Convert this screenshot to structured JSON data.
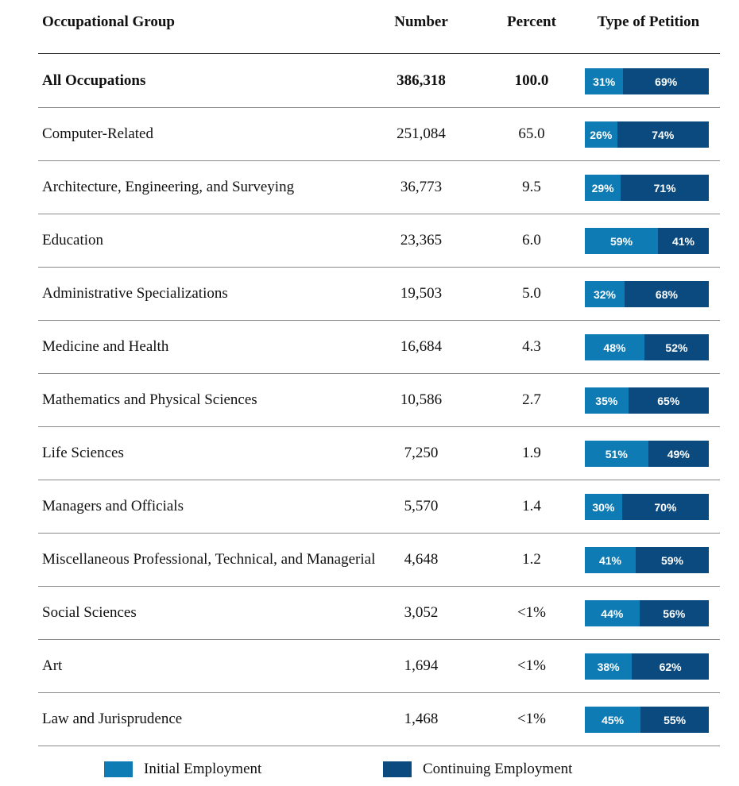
{
  "headers": {
    "group": "Occupational Group",
    "number": "Number",
    "percent": "Percent",
    "type": "Type of Petition"
  },
  "legend": {
    "initial": {
      "label": "Initial Employment",
      "color": "#0e7bb4"
    },
    "continuing": {
      "label": "Continuing Employment",
      "color": "#0a4a7e"
    }
  },
  "chart_data": {
    "type": "bar",
    "stacked": true,
    "orientation": "horizontal",
    "categories": [
      "All Occupations",
      "Computer-Related",
      "Architecture, Engineering, and Surveying",
      "Education",
      "Administrative Specializations",
      "Medicine and Health",
      "Mathematics and Physical Sciences",
      "Life Sciences",
      "Managers and Officials",
      "Miscellaneous Professional, Technical, and Managerial",
      "Social Sciences",
      "Art",
      "Law and Jurisprudence"
    ],
    "number": [
      "386,318",
      "251,084",
      "36,773",
      "23,365",
      "19,503",
      "16,684",
      "10,586",
      "7,250",
      "5,570",
      "4,648",
      "3,052",
      "1,694",
      "1,468"
    ],
    "percent": [
      "100.0",
      "65.0",
      "9.5",
      "6.0",
      "5.0",
      "4.3",
      "2.7",
      "1.9",
      "1.4",
      "1.2",
      "<1%",
      "<1%",
      "<1%"
    ],
    "series": [
      {
        "name": "Initial Employment",
        "color": "#0e7bb4",
        "values": [
          31,
          26,
          29,
          59,
          32,
          48,
          35,
          51,
          30,
          41,
          44,
          38,
          45
        ]
      },
      {
        "name": "Continuing Employment",
        "color": "#0a4a7e",
        "values": [
          69,
          74,
          71,
          41,
          68,
          52,
          65,
          49,
          70,
          59,
          56,
          62,
          55
        ]
      }
    ]
  }
}
